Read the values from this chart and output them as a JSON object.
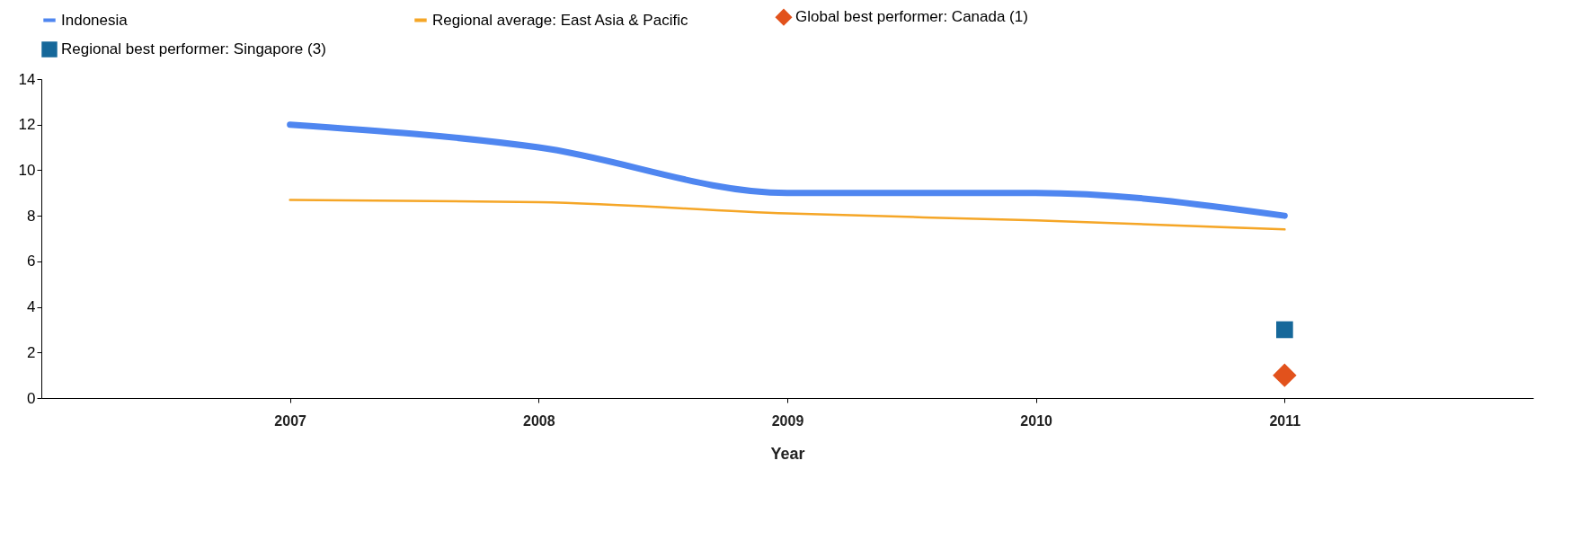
{
  "chart_data": {
    "type": "line",
    "xlabel": "Year",
    "categories": [
      "2007",
      "2008",
      "2009",
      "2010",
      "2011"
    ],
    "ylim": [
      0,
      14
    ],
    "yticks": [
      0,
      2,
      4,
      6,
      8,
      10,
      12,
      14
    ],
    "grid": false,
    "legend": "top left",
    "series": [
      {
        "name": "Indonesia",
        "color": "#4f86f0",
        "values": [
          12,
          11,
          9,
          9,
          8
        ]
      },
      {
        "name": "Regional average: East Asia & Pacific",
        "color": "#f5a627",
        "values": [
          8.7,
          8.6,
          8.1,
          7.8,
          7.4
        ]
      },
      {
        "name": "Global best performer: Canada (1)",
        "type": "scatter",
        "marker": "diamond",
        "color": "#e2521c",
        "values": [
          null,
          null,
          null,
          null,
          1
        ]
      },
      {
        "name": "Regional best performer: Singapore (3)",
        "type": "scatter",
        "marker": "square",
        "color": "#16689a",
        "values": [
          null,
          null,
          null,
          null,
          3
        ]
      }
    ]
  }
}
